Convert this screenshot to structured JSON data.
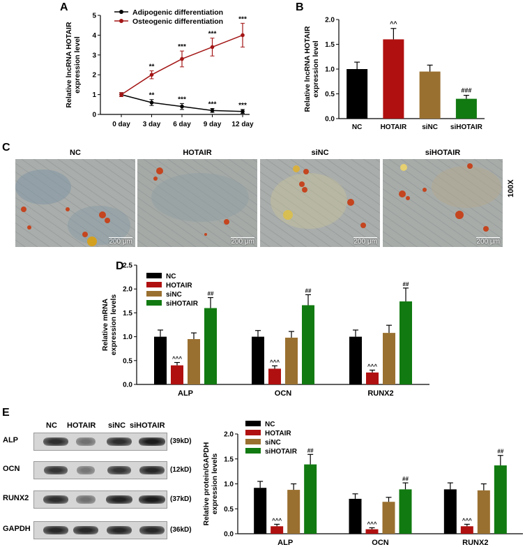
{
  "panels": {
    "a": "A",
    "b": "B",
    "c": "C",
    "d": "D",
    "e": "E"
  },
  "chart_data": [
    {
      "id": "A",
      "type": "line",
      "categories": [
        "0 day",
        "3 day",
        "6 day",
        "9 day",
        "12 day"
      ],
      "ylabel": "Relative lncRNA HOTAIR expression level",
      "ylim": [
        0,
        5
      ],
      "yticks": [
        0,
        1,
        2,
        3,
        4,
        5
      ],
      "legend_position": "top-left",
      "series": [
        {
          "name": "Adipogenic differentiation",
          "color": "#000000",
          "values": [
            1.0,
            0.6,
            0.4,
            0.2,
            0.15
          ],
          "errors": [
            0.1,
            0.15,
            0.15,
            0.1,
            0.1
          ],
          "annotations": [
            "",
            "**",
            "***",
            "***",
            "***"
          ]
        },
        {
          "name": "Osteogenic differentiation",
          "color": "#a31515",
          "values": [
            1.0,
            2.0,
            2.8,
            3.4,
            4.0
          ],
          "errors": [
            0.1,
            0.2,
            0.4,
            0.45,
            0.6
          ],
          "annotations": [
            "",
            "**",
            "***",
            "***",
            "***"
          ]
        }
      ]
    },
    {
      "id": "B",
      "type": "bar",
      "categories": [
        "NC",
        "HOTAIR",
        "siNC",
        "siHOTAIR"
      ],
      "values": [
        1.0,
        1.6,
        0.95,
        0.4
      ],
      "errors": [
        0.14,
        0.22,
        0.13,
        0.07
      ],
      "annotations": [
        "",
        "^^",
        "",
        "###"
      ],
      "colors": [
        "#000000",
        "#b01010",
        "#9a7030",
        "#117a11"
      ],
      "ylabel": "Relative lncRNA HOTAIR expression level",
      "ylim": [
        0,
        2.0
      ],
      "yticks": [
        "0.0",
        "0.5",
        "1.0",
        "1.5",
        "2.0"
      ]
    },
    {
      "id": "D",
      "type": "bar",
      "categories": [
        "ALP",
        "OCN",
        "RUNX2"
      ],
      "ylabel": "Relative mRNA expression levels",
      "ylim": [
        0,
        2.5
      ],
      "yticks": [
        "0.0",
        "0.5",
        "1.0",
        "1.5",
        "2.0",
        "2.5"
      ],
      "legend_position": "top-left",
      "series": [
        {
          "name": "NC",
          "color": "#000000",
          "values": [
            1.0,
            1.0,
            1.0
          ],
          "errors": [
            0.14,
            0.13,
            0.14
          ],
          "annotations": [
            "",
            "",
            ""
          ]
        },
        {
          "name": "HOTAIR",
          "color": "#b01010",
          "values": [
            0.4,
            0.33,
            0.25
          ],
          "errors": [
            0.06,
            0.06,
            0.05
          ],
          "annotations": [
            "^^^",
            "^^^",
            "^^^"
          ]
        },
        {
          "name": "siNC",
          "color": "#9a7030",
          "values": [
            0.95,
            0.98,
            1.08
          ],
          "errors": [
            0.13,
            0.13,
            0.16
          ],
          "annotations": [
            "",
            "",
            ""
          ]
        },
        {
          "name": "siHOTAIR",
          "color": "#117a11",
          "values": [
            1.6,
            1.66,
            1.74
          ],
          "errors": [
            0.22,
            0.22,
            0.28
          ],
          "annotations": [
            "##",
            "##",
            "##"
          ]
        }
      ]
    },
    {
      "id": "E",
      "type": "bar",
      "categories": [
        "ALP",
        "OCN",
        "RUNX2"
      ],
      "ylabel": "Relative protein/GAPDH expression levels",
      "ylim": [
        0,
        2.0
      ],
      "yticks": [
        "0.0",
        "0.5",
        "1.0",
        "1.5",
        "2.0"
      ],
      "legend_position": "top-left",
      "series": [
        {
          "name": "NC",
          "color": "#000000",
          "values": [
            0.92,
            0.7,
            0.89
          ],
          "errors": [
            0.13,
            0.1,
            0.13
          ],
          "annotations": [
            "",
            "",
            ""
          ]
        },
        {
          "name": "HOTAIR",
          "color": "#b01010",
          "values": [
            0.15,
            0.09,
            0.15
          ],
          "errors": [
            0.04,
            0.03,
            0.04
          ],
          "annotations": [
            "^^^",
            "^^^",
            "^^^"
          ]
        },
        {
          "name": "siNC",
          "color": "#9a7030",
          "values": [
            0.88,
            0.64,
            0.87
          ],
          "errors": [
            0.12,
            0.09,
            0.13
          ],
          "annotations": [
            "",
            "",
            ""
          ]
        },
        {
          "name": "siHOTAIR",
          "color": "#117a11",
          "values": [
            1.39,
            0.89,
            1.37
          ],
          "errors": [
            0.2,
            0.13,
            0.2
          ],
          "annotations": [
            "##",
            "##",
            "##"
          ]
        }
      ]
    }
  ],
  "micrographs": {
    "titles": [
      "NC",
      "HOTAIR",
      "siNC",
      "siHOTAIR"
    ],
    "scale_bar": "200 μm",
    "magnification": "100X"
  },
  "western_blot": {
    "columns": [
      "NC",
      "HOTAIR",
      "siNC",
      "siHOTAIR"
    ],
    "rows": [
      {
        "label": "ALP",
        "kd": "(39kD)",
        "intensity": [
          0.85,
          0.35,
          0.85,
          1.0
        ]
      },
      {
        "label": "OCN",
        "kd": "(12kD)",
        "intensity": [
          0.8,
          0.3,
          0.8,
          0.9
        ]
      },
      {
        "label": "RUNX2",
        "kd": "(37kD)",
        "intensity": [
          0.85,
          0.35,
          0.95,
          1.0
        ]
      },
      {
        "label": "GAPDH",
        "kd": "(36kD)",
        "intensity": [
          0.9,
          0.9,
          0.9,
          0.9
        ]
      }
    ]
  }
}
